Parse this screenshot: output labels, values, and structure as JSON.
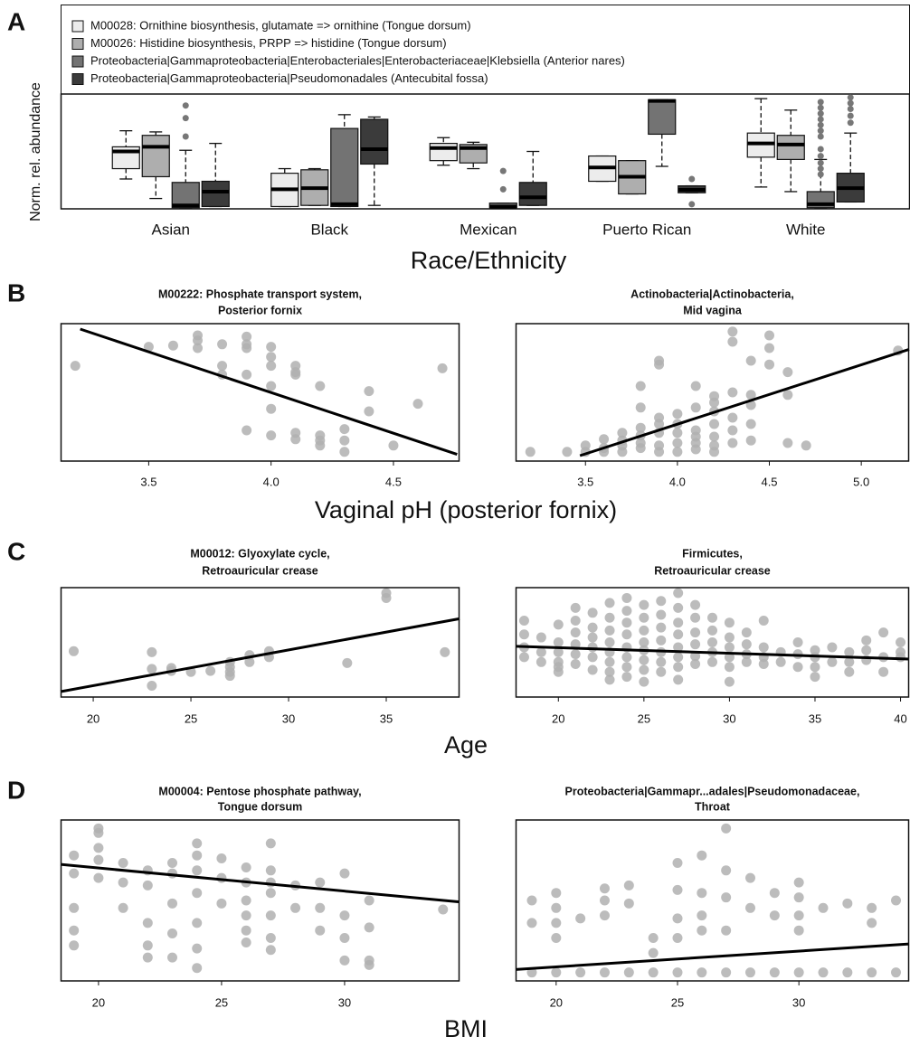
{
  "panels": [
    {
      "letter": "A"
    },
    {
      "letter": "B",
      "xlabel": "Vaginal pH (posterior fornix)"
    },
    {
      "letter": "C",
      "xlabel": "Age"
    },
    {
      "letter": "D",
      "xlabel": "BMI"
    }
  ],
  "chart_data": [
    {
      "type": "box",
      "xlabel": "Race/Ethnicity",
      "ylabel": "Norm. rel. abundance",
      "ylim": [
        0,
        1
      ],
      "categories": [
        "Asian",
        "Black",
        "Mexican",
        "Puerto Rican",
        "White"
      ],
      "series": [
        {
          "name": "M00028: Ornithine biosynthesis, glutamate => ornithine (Tongue dorsum)",
          "color": "#ececec",
          "stats": [
            {
              "low": 0.26,
              "q1": 0.35,
              "median": 0.5,
              "q3": 0.54,
              "high": 0.68,
              "outliers": []
            },
            {
              "low": 0.02,
              "q1": 0.02,
              "median": 0.17,
              "q3": 0.31,
              "high": 0.35,
              "outliers": []
            },
            {
              "low": 0.38,
              "q1": 0.42,
              "median": 0.53,
              "q3": 0.57,
              "high": 0.62,
              "outliers": []
            },
            {
              "low": 0.24,
              "q1": 0.24,
              "median": 0.36,
              "q3": 0.46,
              "high": 0.46,
              "outliers": []
            },
            {
              "low": 0.19,
              "q1": 0.45,
              "median": 0.57,
              "q3": 0.66,
              "high": 0.96,
              "outliers": []
            }
          ]
        },
        {
          "name": "M00026: Histidine biosynthesis, PRPP => histidine (Tongue dorsum)",
          "color": "#aeaeae",
          "stats": [
            {
              "low": 0.09,
              "q1": 0.28,
              "median": 0.54,
              "q3": 0.64,
              "high": 0.67,
              "outliers": []
            },
            {
              "low": 0.03,
              "q1": 0.03,
              "median": 0.18,
              "q3": 0.34,
              "high": 0.35,
              "outliers": []
            },
            {
              "low": 0.35,
              "q1": 0.4,
              "median": 0.53,
              "q3": 0.56,
              "high": 0.58,
              "outliers": []
            },
            {
              "low": 0.13,
              "q1": 0.13,
              "median": 0.28,
              "q3": 0.42,
              "high": 0.42,
              "outliers": []
            },
            {
              "low": 0.15,
              "q1": 0.43,
              "median": 0.56,
              "q3": 0.64,
              "high": 0.86,
              "outliers": []
            }
          ]
        },
        {
          "name": "Proteobacteria|Gammaproteobacteria|Enterobacteriales|Enterobacteriaceae|Klebsiella (Anterior nares)",
          "color": "#737373",
          "stats": [
            {
              "low": 0.01,
              "q1": 0.01,
              "median": 0.03,
              "q3": 0.23,
              "high": 0.51,
              "outliers": [
                0.9,
                0.79,
                0.63
              ]
            },
            {
              "low": 0.02,
              "q1": 0.02,
              "median": 0.04,
              "q3": 0.7,
              "high": 0.82,
              "outliers": []
            },
            {
              "low": 0.01,
              "q1": 0.01,
              "median": 0.02,
              "q3": 0.05,
              "high": 0.05,
              "outliers": [
                0.33,
                0.17
              ]
            },
            {
              "low": 0.37,
              "q1": 0.65,
              "median": 0.94,
              "q3": 0.95,
              "high": 0.95,
              "outliers": []
            },
            {
              "low": 0.01,
              "q1": 0.01,
              "median": 0.04,
              "q3": 0.15,
              "high": 0.43,
              "outliers": [
                0.93,
                0.88,
                0.83,
                0.78,
                0.73,
                0.68,
                0.63,
                0.52,
                0.46,
                0.4,
                0.35,
                0.3
              ]
            }
          ]
        },
        {
          "name": "Proteobacteria|Gammaproteobacteria|Pseudomonadales (Antecubital fossa)",
          "color": "#3b3b3b",
          "stats": [
            {
              "low": 0.02,
              "q1": 0.02,
              "median": 0.15,
              "q3": 0.24,
              "high": 0.57,
              "outliers": []
            },
            {
              "low": 0.03,
              "q1": 0.39,
              "median": 0.52,
              "q3": 0.78,
              "high": 0.8,
              "outliers": []
            },
            {
              "low": 0.03,
              "q1": 0.03,
              "median": 0.1,
              "q3": 0.23,
              "high": 0.5,
              "outliers": []
            },
            {
              "low": 0.14,
              "q1": 0.14,
              "median": 0.165,
              "q3": 0.2,
              "high": 0.2,
              "outliers": [
                0.26,
                0.04
              ]
            },
            {
              "low": 0.06,
              "q1": 0.06,
              "median": 0.18,
              "q3": 0.31,
              "high": 0.66,
              "outliers": [
                0.97,
                0.92,
                0.87,
                0.81,
                0.75
              ]
            }
          ]
        }
      ]
    },
    {
      "type": "scatter",
      "title": [
        "M00222: Phosphate transport system,",
        "Posterior fornix"
      ],
      "xlim": [
        3.14,
        4.77
      ],
      "ylim": [
        0,
        1
      ],
      "xticks": [
        3.5,
        {
          "value": 4,
          "label": "4.0"
        },
        4.5
      ],
      "color": "#b0b0b0",
      "x": [
        3.2,
        3.5,
        3.6,
        3.7,
        3.7,
        3.7,
        3.8,
        3.8,
        3.8,
        3.9,
        3.9,
        3.9,
        3.9,
        3.9,
        4.0,
        4.0,
        4.0,
        4.0,
        4.0,
        4.0,
        4.1,
        4.1,
        4.1,
        4.1,
        4.1,
        4.2,
        4.2,
        4.2,
        4.2,
        4.3,
        4.3,
        4.3,
        4.4,
        4.4,
        4.5,
        4.6,
        4.7
      ],
      "values": [
        0.71,
        0.86,
        0.87,
        0.95,
        0.85,
        0.91,
        0.88,
        0.71,
        0.64,
        0.85,
        0.94,
        0.88,
        0.64,
        0.2,
        0.86,
        0.78,
        0.71,
        0.55,
        0.37,
        0.16,
        0.66,
        0.71,
        0.18,
        0.13,
        0.64,
        0.16,
        0.12,
        0.08,
        0.55,
        0.21,
        0.12,
        0.03,
        0.51,
        0.35,
        0.08,
        0.41,
        0.69
      ],
      "fit": {
        "x": [
          3.22,
          4.76
        ],
        "y": [
          1.0,
          0.01
        ]
      }
    },
    {
      "type": "scatter",
      "title": [
        "Actinobacteria|Actinobacteria,",
        "Mid vagina"
      ],
      "xlim": [
        3.12,
        5.26
      ],
      "ylim": [
        0,
        1
      ],
      "xticks": [
        3.5,
        {
          "value": 4,
          "label": "4.0"
        },
        4.5,
        {
          "value": 5,
          "label": "5.0"
        }
      ],
      "color": "#b0b0b0",
      "x": [
        3.2,
        3.4,
        3.5,
        3.5,
        3.6,
        3.6,
        3.6,
        3.7,
        3.7,
        3.7,
        3.7,
        3.8,
        3.8,
        3.8,
        3.8,
        3.8,
        3.8,
        3.9,
        3.9,
        3.9,
        3.9,
        3.9,
        3.9,
        3.9,
        4.0,
        4.0,
        4.0,
        4.0,
        4.0,
        4.1,
        4.1,
        4.1,
        4.1,
        4.1,
        4.1,
        4.2,
        4.2,
        4.2,
        4.2,
        4.2,
        4.2,
        4.2,
        4.3,
        4.3,
        4.3,
        4.3,
        4.3,
        4.3,
        4.4,
        4.4,
        4.4,
        4.4,
        4.4,
        4.5,
        4.5,
        4.5,
        4.6,
        4.6,
        4.6,
        4.7,
        5.2
      ],
      "values": [
        0.03,
        0.03,
        0.03,
        0.08,
        0.03,
        0.06,
        0.13,
        0.03,
        0.08,
        0.12,
        0.18,
        0.06,
        0.1,
        0.16,
        0.22,
        0.38,
        0.55,
        0.03,
        0.08,
        0.18,
        0.25,
        0.3,
        0.72,
        0.75,
        0.03,
        0.1,
        0.18,
        0.25,
        0.33,
        0.05,
        0.1,
        0.15,
        0.2,
        0.38,
        0.55,
        0.03,
        0.08,
        0.15,
        0.25,
        0.35,
        0.42,
        0.47,
        0.1,
        0.2,
        0.3,
        0.5,
        0.9,
        0.98,
        0.12,
        0.25,
        0.4,
        0.48,
        0.75,
        0.72,
        0.85,
        0.95,
        0.1,
        0.48,
        0.66,
        0.08,
        0.83
      ],
      "fit": {
        "x": [
          3.47,
          5.26
        ],
        "y": [
          0,
          0.84
        ]
      }
    },
    {
      "type": "scatter",
      "title": [
        "M00012: Glyoxylate cycle,",
        "Retroauricular crease"
      ],
      "xlim": [
        18.33,
        38.75
      ],
      "ylim": [
        0,
        1
      ],
      "xticks": [
        20,
        25,
        30,
        35
      ],
      "color": "#b0b0b0",
      "x": [
        19,
        23,
        23,
        23,
        24,
        24,
        25,
        26,
        27,
        27,
        27,
        27,
        28,
        28,
        29,
        29,
        33,
        35,
        35,
        38
      ],
      "values": [
        0.41,
        0.4,
        0.23,
        0.06,
        0.24,
        0.21,
        0.2,
        0.21,
        0.3,
        0.25,
        0.2,
        0.16,
        0.37,
        0.3,
        0.35,
        0.41,
        0.29,
        0.95,
        1.0,
        0.4
      ],
      "fit": {
        "x": [
          18.33,
          38.75
        ],
        "y": [
          0,
          0.74
        ]
      }
    },
    {
      "type": "scatter",
      "title": [
        "Firmicutes,",
        "Retroauricular crease"
      ],
      "xlim": [
        17.5,
        40.5
      ],
      "ylim": [
        0,
        1
      ],
      "xticks": [
        20,
        25,
        30,
        35,
        40
      ],
      "color": "#b0b0b0",
      "x": [
        18,
        18,
        18,
        18,
        19,
        19,
        19,
        20,
        20,
        20,
        20,
        20,
        20,
        21,
        21,
        21,
        21,
        21,
        21,
        22,
        22,
        22,
        22,
        22,
        22,
        23,
        23,
        23,
        23,
        23,
        23,
        23,
        23,
        24,
        24,
        24,
        24,
        24,
        24,
        24,
        24,
        25,
        25,
        25,
        25,
        25,
        25,
        25,
        25,
        26,
        26,
        26,
        26,
        26,
        26,
        26,
        27,
        27,
        27,
        27,
        27,
        27,
        27,
        27,
        28,
        28,
        28,
        28,
        28,
        28,
        29,
        29,
        29,
        29,
        29,
        30,
        30,
        30,
        30,
        30,
        30,
        31,
        31,
        31,
        31,
        32,
        32,
        32,
        32,
        33,
        33,
        34,
        34,
        34,
        35,
        35,
        35,
        35,
        36,
        36,
        37,
        37,
        37,
        38,
        38,
        38,
        39,
        39,
        39,
        40,
        40,
        40
      ],
      "values": [
        0.72,
        0.58,
        0.45,
        0.35,
        0.55,
        0.4,
        0.3,
        0.68,
        0.5,
        0.4,
        0.3,
        0.25,
        0.2,
        0.85,
        0.72,
        0.6,
        0.48,
        0.38,
        0.28,
        0.8,
        0.65,
        0.55,
        0.45,
        0.35,
        0.22,
        0.9,
        0.75,
        0.62,
        0.5,
        0.4,
        0.3,
        0.2,
        0.12,
        0.95,
        0.82,
        0.7,
        0.58,
        0.45,
        0.35,
        0.25,
        0.15,
        0.88,
        0.75,
        0.62,
        0.5,
        0.42,
        0.32,
        0.22,
        0.1,
        0.92,
        0.78,
        0.65,
        0.52,
        0.4,
        0.3,
        0.2,
        1.0,
        0.85,
        0.7,
        0.58,
        0.45,
        0.35,
        0.25,
        0.12,
        0.88,
        0.75,
        0.6,
        0.48,
        0.36,
        0.28,
        0.75,
        0.62,
        0.5,
        0.4,
        0.3,
        0.7,
        0.55,
        0.45,
        0.35,
        0.25,
        0.1,
        0.6,
        0.48,
        0.38,
        0.3,
        0.72,
        0.45,
        0.35,
        0.28,
        0.4,
        0.3,
        0.5,
        0.38,
        0.25,
        0.42,
        0.35,
        0.25,
        0.15,
        0.45,
        0.3,
        0.4,
        0.3,
        0.2,
        0.52,
        0.42,
        0.32,
        0.6,
        0.35,
        0.2,
        0.5,
        0.4,
        0.35
      ],
      "fit": {
        "x": [
          17.5,
          40.5
        ],
        "y": [
          0.46,
          0.33
        ]
      }
    },
    {
      "type": "scatter",
      "title": [
        "M00004: Pentose phosphate pathway,",
        "Tongue dorsum"
      ],
      "xlim": [
        18.46,
        34.67
      ],
      "ylim": [
        0,
        1
      ],
      "xticks": [
        20,
        25,
        30
      ],
      "color": "#b0b0b0",
      "x": [
        19,
        19,
        19,
        19,
        19,
        20,
        20,
        20,
        20,
        20,
        21,
        21,
        21,
        22,
        22,
        22,
        22,
        22,
        23,
        23,
        23,
        23,
        23,
        24,
        24,
        24,
        24,
        24,
        24,
        24,
        25,
        25,
        25,
        26,
        26,
        26,
        26,
        26,
        26,
        27,
        27,
        27,
        27,
        27,
        27,
        27,
        28,
        28,
        29,
        29,
        29,
        30,
        30,
        30,
        30,
        31,
        31,
        31,
        31,
        34
      ],
      "values": [
        0.8,
        0.68,
        0.45,
        0.3,
        0.2,
        0.98,
        0.95,
        0.85,
        0.77,
        0.65,
        0.75,
        0.62,
        0.45,
        0.7,
        0.6,
        0.35,
        0.2,
        0.12,
        0.75,
        0.68,
        0.48,
        0.28,
        0.12,
        0.88,
        0.8,
        0.7,
        0.55,
        0.35,
        0.18,
        0.05,
        0.78,
        0.65,
        0.48,
        0.72,
        0.62,
        0.5,
        0.4,
        0.3,
        0.22,
        0.88,
        0.7,
        0.62,
        0.55,
        0.4,
        0.25,
        0.17,
        0.6,
        0.45,
        0.62,
        0.45,
        0.3,
        0.68,
        0.4,
        0.25,
        0.1,
        0.5,
        0.32,
        0.1,
        0.07,
        0.44
      ],
      "fit": {
        "x": [
          18.46,
          34.67
        ],
        "y": [
          0.74,
          0.49
        ]
      }
    },
    {
      "type": "scatter",
      "title": [
        "Proteobacteria|Gammapr...adales|Pseudomonadaceae,",
        "Throat"
      ],
      "xlim": [
        18.33,
        34.54
      ],
      "ylim": [
        0,
        1
      ],
      "xticks": [
        20,
        25,
        30
      ],
      "color": "#b0b0b0",
      "x": [
        19,
        20,
        21,
        22,
        23,
        24,
        25,
        26,
        27,
        28,
        29,
        30,
        31,
        32,
        33,
        34,
        19,
        19,
        20,
        20,
        20,
        20,
        21,
        22,
        22,
        22,
        23,
        23,
        24,
        24,
        25,
        25,
        25,
        25,
        26,
        26,
        26,
        26,
        27,
        27,
        27,
        27,
        28,
        28,
        29,
        29,
        30,
        30,
        30,
        30,
        31,
        32,
        33,
        33,
        34
      ],
      "values": [
        0.02,
        0.02,
        0.02,
        0.02,
        0.02,
        0.02,
        0.02,
        0.02,
        0.02,
        0.02,
        0.02,
        0.02,
        0.02,
        0.02,
        0.02,
        0.02,
        0.5,
        0.35,
        0.55,
        0.45,
        0.35,
        0.25,
        0.38,
        0.58,
        0.5,
        0.4,
        0.6,
        0.48,
        0.25,
        0.15,
        0.75,
        0.57,
        0.38,
        0.25,
        0.8,
        0.55,
        0.4,
        0.3,
        0.98,
        0.7,
        0.52,
        0.3,
        0.65,
        0.45,
        0.55,
        0.4,
        0.62,
        0.52,
        0.4,
        0.3,
        0.45,
        0.48,
        0.45,
        0.35,
        0.5
      ],
      "fit": {
        "x": [
          18.33,
          34.54
        ],
        "y": [
          0.04,
          0.21
        ]
      }
    }
  ]
}
